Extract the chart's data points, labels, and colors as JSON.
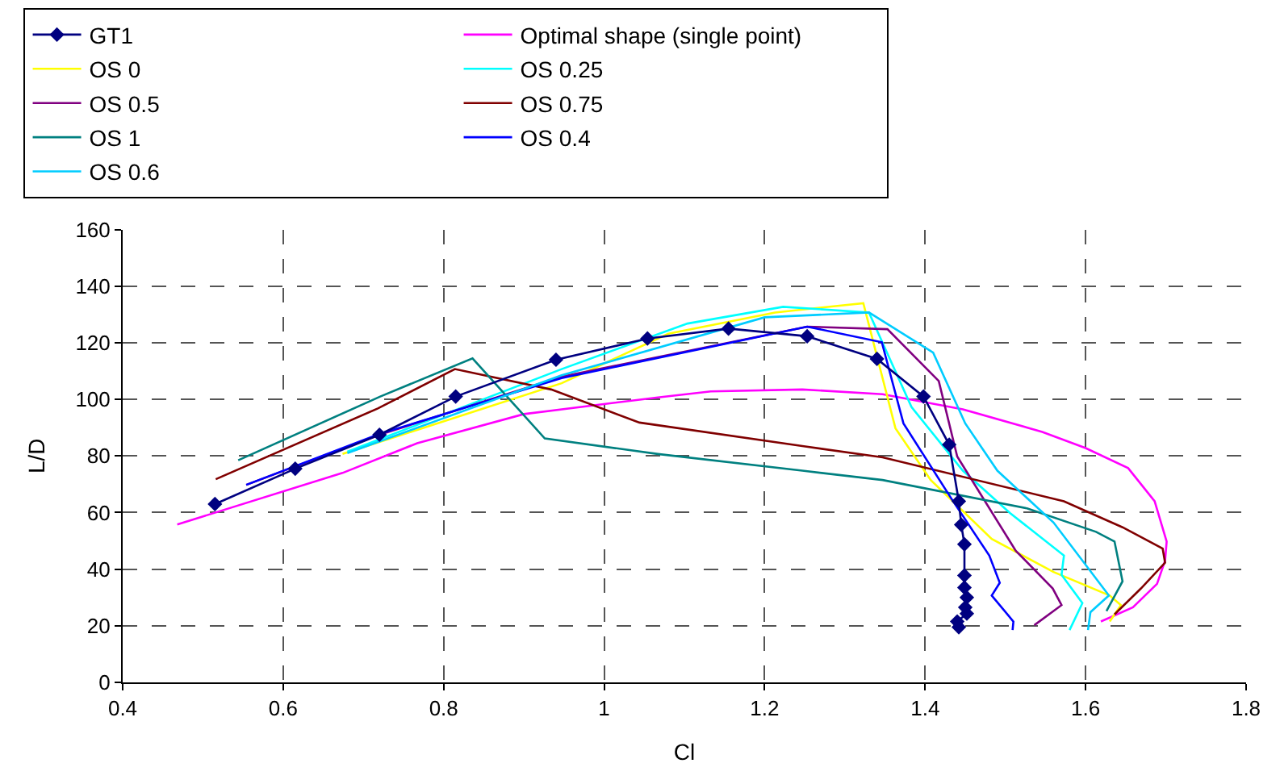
{
  "chart_data": {
    "type": "line",
    "xlabel": "Cl",
    "ylabel": "L/D",
    "xlim": [
      0.4,
      1.8
    ],
    "xticks": [
      0.4,
      0.6,
      0.8,
      1,
      1.2,
      1.4,
      1.6,
      1.8
    ],
    "ylim": [
      0,
      160
    ],
    "yticks": [
      0,
      20,
      40,
      60,
      80,
      100,
      120,
      140,
      160
    ],
    "grid": true,
    "legend": "top",
    "marker": "none",
    "series": [
      {
        "name": "GT1",
        "color": "#000080",
        "marker": "diamond",
        "x": [
          0.515,
          0.615,
          0.72,
          0.815,
          0.94,
          1.054,
          1.155,
          1.253,
          1.34,
          1.398,
          1.43,
          1.442,
          1.445,
          1.449,
          1.449,
          1.449,
          1.452,
          1.45,
          1.452,
          1.44,
          1.442
        ],
        "values": [
          63,
          75.5,
          87.5,
          101,
          114,
          121.5,
          125,
          122.3,
          114.3,
          101,
          84,
          64,
          55.7,
          48.8,
          37.8,
          33.5,
          30,
          26.5,
          24.3,
          21.5,
          19.5
        ]
      },
      {
        "name": "Optimal shape (single point)",
        "color": "#ff00ff",
        "x": [
          0.468,
          0.674,
          0.767,
          0.9,
          1.067,
          1.133,
          1.247,
          1.347,
          1.447,
          1.546,
          1.6,
          1.653,
          1.686,
          1.701,
          1.699,
          1.689,
          1.659,
          1.619
        ],
        "values": [
          55.8,
          74,
          84.5,
          94.8,
          100.7,
          102.8,
          103.5,
          101.8,
          96.5,
          88.5,
          82.8,
          75.7,
          64,
          49.8,
          43,
          34.8,
          26.5,
          21.5
        ]
      },
      {
        "name": "OS 0",
        "color": "#ffff00",
        "x": [
          0.674,
          0.947,
          1.08,
          1.213,
          1.323,
          1.363,
          1.407,
          1.483,
          1.56,
          1.63,
          1.644,
          1.63
        ],
        "values": [
          80.7,
          105.7,
          123.2,
          130.7,
          134,
          89.8,
          71.5,
          50.7,
          39,
          30.7,
          27.3,
          21.5
        ]
      },
      {
        "name": "OS 0.25",
        "color": "#00ffff",
        "x": [
          0.68,
          0.947,
          1.104,
          1.223,
          1.33,
          1.383,
          1.447,
          1.506,
          1.573,
          1.57,
          1.596,
          1.58
        ],
        "values": [
          81.5,
          110.7,
          126.8,
          132.7,
          130.7,
          97.3,
          74.8,
          59.8,
          44.8,
          38,
          28,
          18.5
        ]
      },
      {
        "name": "OS 0.5",
        "color": "#800080",
        "x": [
          0.554,
          0.72,
          0.947,
          1.253,
          1.353,
          1.417,
          1.44,
          1.513,
          1.559,
          1.57,
          1.536
        ],
        "values": [
          69.8,
          87.5,
          108,
          125.7,
          124.8,
          106.5,
          79.8,
          46.5,
          33.2,
          27.3,
          20.2
        ]
      },
      {
        "name": "OS 0.75",
        "color": "#800000",
        "x": [
          0.516,
          0.718,
          0.814,
          0.934,
          1.044,
          1.247,
          1.347,
          1.573,
          1.646,
          1.696,
          1.699,
          1.669,
          1.636
        ],
        "values": [
          71.8,
          96.8,
          110.7,
          103.5,
          91.8,
          83.5,
          79.5,
          64,
          54.8,
          47.3,
          42.3,
          33.2,
          24
        ]
      },
      {
        "name": "OS 1",
        "color": "#008080",
        "x": [
          0.544,
          0.721,
          0.836,
          0.926,
          1.067,
          1.247,
          1.347,
          1.527,
          1.613,
          1.636,
          1.646,
          1.626
        ],
        "values": [
          78.5,
          101,
          114.5,
          86.2,
          80.7,
          74.8,
          71.5,
          61.5,
          53.2,
          49.8,
          35.7,
          25.2
        ]
      },
      {
        "name": "OS 0.4",
        "color": "#0000ff",
        "x": [
          0.554,
          0.72,
          0.947,
          1.253,
          1.346,
          1.373,
          1.433,
          1.48,
          1.493,
          1.483,
          1.51,
          1.509
        ],
        "values": [
          69.8,
          87.8,
          107.5,
          125.7,
          120.2,
          91.5,
          64.8,
          44.8,
          35.2,
          30.7,
          21.5,
          18.5
        ]
      },
      {
        "name": "OS 0.6",
        "color": "#00ccff",
        "x": [
          0.68,
          0.947,
          1.2,
          1.33,
          1.41,
          1.45,
          1.49,
          1.56,
          1.629,
          1.606,
          1.603
        ],
        "values": [
          81,
          108.5,
          129,
          130.7,
          116.5,
          91.5,
          74.8,
          56.5,
          30.7,
          24.8,
          18.5
        ]
      }
    ]
  }
}
